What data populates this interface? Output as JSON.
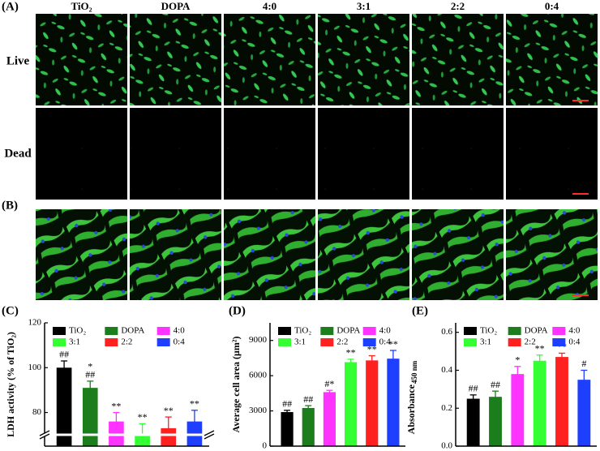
{
  "figure": {
    "panel_labels": [
      "(A)",
      "(B)"
    ],
    "columns": [
      "TiO₂",
      "DOPA",
      "4:0",
      "3:1",
      "2:2",
      "0:4"
    ],
    "rows": [
      "Live",
      "Dead"
    ]
  },
  "chart_data": [
    {
      "type": "bar",
      "panel": "(C)",
      "y_label": "LDH activity (% of TiO₂)",
      "ylim": [
        65,
        120
      ],
      "yticks": [
        80,
        100,
        120
      ],
      "axis_break": true,
      "series": [
        {
          "name": "TiO₂",
          "color": "#000000",
          "values": [
            100
          ],
          "errors": [
            3
          ],
          "annotations": [
            "##"
          ]
        },
        {
          "name": "DOPA",
          "color": "#1b7d1b",
          "values": [
            91
          ],
          "errors": [
            3
          ],
          "annotations": [
            "*",
            "##"
          ]
        },
        {
          "name": "4:0",
          "color": "#ff33ff",
          "values": [
            76
          ],
          "errors": [
            4
          ],
          "annotations": [
            "**"
          ]
        },
        {
          "name": "3:1",
          "color": "#33ff33",
          "values": [
            70
          ],
          "errors": [
            5
          ],
          "annotations": [
            "**"
          ]
        },
        {
          "name": "2:2",
          "color": "#ff2020",
          "values": [
            73
          ],
          "errors": [
            5
          ],
          "annotations": [
            "**"
          ]
        },
        {
          "name": "0:4",
          "color": "#1f3fff",
          "values": [
            76
          ],
          "errors": [
            5
          ],
          "annotations": [
            "**"
          ]
        }
      ]
    },
    {
      "type": "bar",
      "panel": "(D)",
      "y_label": "Average cell area (μm²)",
      "ylim": [
        0,
        10500
      ],
      "yticks": [
        0,
        3000,
        6000,
        9000
      ],
      "axis_break": false,
      "series": [
        {
          "name": "TiO₂",
          "color": "#000000",
          "values": [
            2900
          ],
          "errors": [
            150
          ],
          "annotations": [
            "##"
          ]
        },
        {
          "name": "DOPA",
          "color": "#1b7d1b",
          "values": [
            3250
          ],
          "errors": [
            200
          ],
          "annotations": [
            "##"
          ]
        },
        {
          "name": "4:0",
          "color": "#ff33ff",
          "values": [
            4600
          ],
          "errors": [
            150
          ],
          "annotations": [
            "#*"
          ]
        },
        {
          "name": "3:1",
          "color": "#33ff33",
          "values": [
            7150
          ],
          "errors": [
            250
          ],
          "annotations": [
            "**"
          ]
        },
        {
          "name": "2:2",
          "color": "#ff2020",
          "values": [
            7300
          ],
          "errors": [
            400
          ],
          "annotations": [
            "**"
          ]
        },
        {
          "name": "0:4",
          "color": "#1f3fff",
          "values": [
            7450
          ],
          "errors": [
            700
          ],
          "annotations": [
            "**"
          ]
        }
      ]
    },
    {
      "type": "bar",
      "panel": "(E)",
      "y_label": "Absorbance",
      "y_label_sub": "450 nm",
      "ylim": [
        0,
        0.65
      ],
      "yticks": [
        {
          "value": 0,
          "label": "0.0"
        },
        0.2,
        0.4,
        0.6
      ],
      "axis_break": false,
      "series": [
        {
          "name": "TiO₂",
          "color": "#000000",
          "values": [
            0.25
          ],
          "errors": [
            0.02
          ],
          "annotations": [
            "##"
          ]
        },
        {
          "name": "DOPA",
          "color": "#1b7d1b",
          "values": [
            0.26
          ],
          "errors": [
            0.03
          ],
          "annotations": [
            "##"
          ]
        },
        {
          "name": "4:0",
          "color": "#ff33ff",
          "values": [
            0.38
          ],
          "errors": [
            0.04
          ],
          "annotations": [
            "*"
          ]
        },
        {
          "name": "3:1",
          "color": "#33ff33",
          "values": [
            0.45
          ],
          "errors": [
            0.03
          ],
          "annotations": [
            "**"
          ]
        },
        {
          "name": "2:2",
          "color": "#ff2020",
          "values": [
            0.47
          ],
          "errors": [
            0.02
          ],
          "annotations": [
            "**"
          ]
        },
        {
          "name": "0:4",
          "color": "#1f3fff",
          "values": [
            0.35
          ],
          "errors": [
            0.05
          ],
          "annotations": [
            "#"
          ]
        }
      ]
    }
  ]
}
